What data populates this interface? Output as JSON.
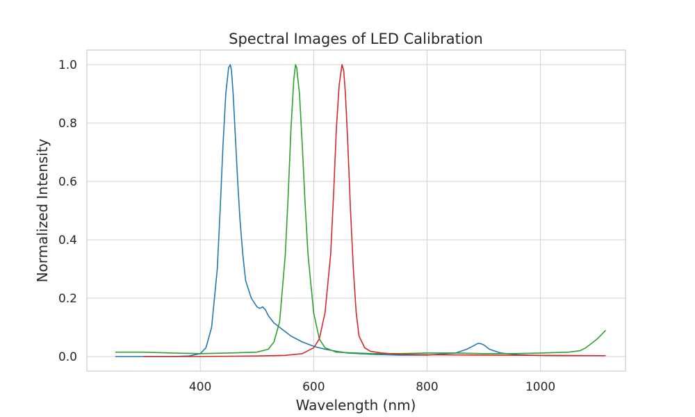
{
  "chart_data": {
    "type": "line",
    "title": "Spectral Images of LED Calibration",
    "xlabel": "Wavelength (nm)",
    "ylabel": "Normalized Intensity",
    "xlim": [
      200,
      1150
    ],
    "ylim": [
      -0.05,
      1.05
    ],
    "xticks": [
      400,
      600,
      800,
      1000
    ],
    "xtick_labels": [
      "400",
      "600",
      "800",
      "1000"
    ],
    "yticks": [
      0.0,
      0.2,
      0.4,
      0.6,
      0.8,
      1.0
    ],
    "ytick_labels": [
      "0.0",
      "0.2",
      "0.4",
      "0.6",
      "0.8",
      "1.0"
    ],
    "grid": true,
    "legend": false,
    "series": [
      {
        "color": "#1f77b4",
        "x": [
          250,
          300,
          350,
          380,
          400,
          410,
          420,
          430,
          435,
          440,
          445,
          450,
          453,
          455,
          458,
          462,
          466,
          470,
          475,
          480,
          490,
          500,
          505,
          510,
          515,
          520,
          530,
          540,
          550,
          560,
          580,
          600,
          620,
          640,
          660,
          700,
          750,
          800,
          850,
          870,
          880,
          890,
          895,
          900,
          910,
          930,
          960,
          1000,
          1050,
          1115
        ],
        "y": [
          0.0,
          0.0,
          0.0,
          0.002,
          0.01,
          0.03,
          0.1,
          0.3,
          0.5,
          0.72,
          0.9,
          0.99,
          1.0,
          0.98,
          0.9,
          0.75,
          0.6,
          0.47,
          0.35,
          0.26,
          0.2,
          0.17,
          0.165,
          0.17,
          0.16,
          0.14,
          0.115,
          0.1,
          0.085,
          0.07,
          0.05,
          0.035,
          0.025,
          0.018,
          0.012,
          0.008,
          0.005,
          0.005,
          0.012,
          0.025,
          0.035,
          0.045,
          0.044,
          0.04,
          0.025,
          0.012,
          0.006,
          0.004,
          0.003,
          0.003
        ]
      },
      {
        "color": "#2ca02c",
        "x": [
          250,
          300,
          350,
          400,
          450,
          500,
          520,
          530,
          540,
          550,
          555,
          560,
          565,
          568,
          570,
          575,
          580,
          585,
          590,
          600,
          610,
          620,
          640,
          700,
          750,
          800,
          850,
          900,
          950,
          1000,
          1050,
          1070,
          1080,
          1090,
          1100,
          1110,
          1115
        ],
        "y": [
          0.015,
          0.015,
          0.012,
          0.01,
          0.012,
          0.015,
          0.025,
          0.05,
          0.12,
          0.35,
          0.55,
          0.78,
          0.95,
          1.0,
          0.99,
          0.9,
          0.72,
          0.52,
          0.35,
          0.15,
          0.06,
          0.03,
          0.015,
          0.01,
          0.01,
          0.012,
          0.012,
          0.01,
          0.01,
          0.012,
          0.015,
          0.02,
          0.03,
          0.045,
          0.06,
          0.08,
          0.09
        ]
      },
      {
        "color": "#d62728",
        "x": [
          300,
          400,
          500,
          550,
          580,
          600,
          610,
          620,
          630,
          635,
          640,
          645,
          650,
          653,
          656,
          660,
          665,
          670,
          675,
          680,
          690,
          700,
          720,
          750,
          800,
          900,
          1000,
          1115
        ],
        "y": [
          0.0,
          0.0,
          0.002,
          0.004,
          0.01,
          0.03,
          0.06,
          0.15,
          0.35,
          0.55,
          0.78,
          0.93,
          1.0,
          0.98,
          0.9,
          0.74,
          0.5,
          0.3,
          0.15,
          0.07,
          0.03,
          0.018,
          0.012,
          0.008,
          0.006,
          0.005,
          0.004,
          0.003
        ]
      }
    ]
  }
}
